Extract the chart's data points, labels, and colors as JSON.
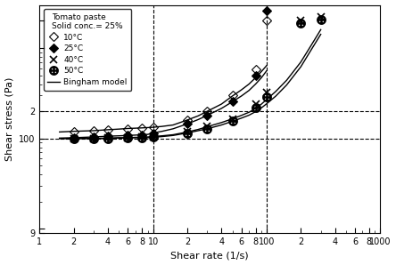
{
  "xlabel": "Shear rate (1/s)",
  "ylabel": "Shear stress (Pa)",
  "legend_title": "Tomato paste\nSolid conc.= 25%",
  "xlim": [
    1,
    1000
  ],
  "ylim": [
    9,
    3000
  ],
  "dashed_vlines": [
    10,
    100
  ],
  "dashed_hlines": [
    100,
    200
  ],
  "series": {
    "10C": {
      "label": "10°C",
      "x": [
        2.0,
        3.0,
        4.0,
        6.0,
        8.0,
        10,
        20,
        30,
        50,
        80,
        100
      ],
      "y": [
        120,
        122,
        125,
        128,
        130,
        133,
        160,
        200,
        300,
        580,
        2000
      ]
    },
    "25C": {
      "label": "25°C",
      "x": [
        2.0,
        3.0,
        4.0,
        6.0,
        8.0,
        10,
        20,
        30,
        50,
        80,
        100
      ],
      "y": [
        102,
        104,
        106,
        108,
        110,
        115,
        145,
        180,
        260,
        500,
        2600
      ]
    },
    "40C": {
      "label": "40°C",
      "x": [
        2.0,
        3.0,
        4.0,
        6.0,
        8.0,
        10,
        20,
        30,
        50,
        80,
        100,
        200,
        300
      ],
      "y": [
        100,
        100,
        101,
        102,
        103,
        105,
        118,
        135,
        165,
        240,
        320,
        2000,
        2200
      ]
    },
    "50C": {
      "label": "50°C",
      "x": [
        2.0,
        3.0,
        4.0,
        6.0,
        8.0,
        10,
        20,
        30,
        50,
        80,
        100,
        200,
        300
      ],
      "y": [
        100,
        100,
        100,
        101,
        102,
        103,
        115,
        128,
        155,
        220,
        290,
        1900,
        2050
      ]
    }
  },
  "bingham_x": [
    1.5,
    2,
    3,
    4,
    5,
    6,
    7,
    8,
    9,
    10,
    12,
    15,
    20,
    25,
    30,
    40,
    50,
    60,
    70,
    80,
    90,
    100,
    120,
    150,
    200,
    250,
    300
  ],
  "bingham_10C": [
    118,
    120,
    122,
    125,
    127,
    129,
    130,
    131,
    132,
    133,
    136,
    141,
    160,
    178,
    200,
    240,
    295,
    345,
    400,
    470,
    550,
    640,
    820,
    1150,
    1900,
    2500,
    2800
  ],
  "bingham_25C": [
    101,
    102,
    104,
    106,
    107,
    108,
    109,
    110,
    111,
    115,
    120,
    128,
    145,
    162,
    180,
    215,
    255,
    295,
    340,
    400,
    470,
    560,
    720,
    1050,
    1800,
    2400,
    2700
  ],
  "bingham_40C": [
    100,
    100,
    100,
    101,
    102,
    102,
    103,
    103,
    104,
    105,
    107,
    110,
    118,
    126,
    135,
    150,
    165,
    180,
    195,
    215,
    240,
    270,
    330,
    440,
    700,
    1100,
    1600
  ],
  "bingham_50C": [
    100,
    100,
    100,
    100,
    101,
    101,
    102,
    102,
    102,
    103,
    105,
    108,
    115,
    122,
    128,
    141,
    155,
    168,
    181,
    198,
    218,
    242,
    293,
    390,
    620,
    980,
    1420
  ],
  "background_color": "#ffffff"
}
